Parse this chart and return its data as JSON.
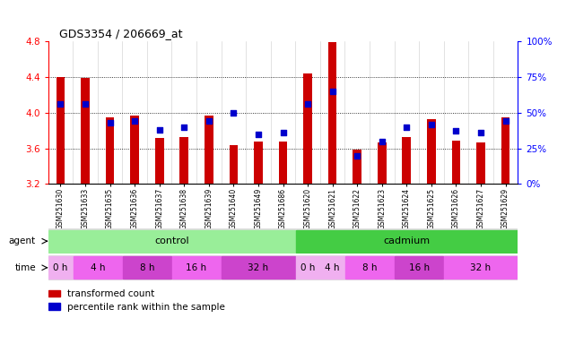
{
  "title": "GDS3354 / 206669_at",
  "samples": [
    "GSM251630",
    "GSM251633",
    "GSM251635",
    "GSM251636",
    "GSM251637",
    "GSM251638",
    "GSM251639",
    "GSM251640",
    "GSM251649",
    "GSM251686",
    "GSM251620",
    "GSM251621",
    "GSM251622",
    "GSM251623",
    "GSM251624",
    "GSM251625",
    "GSM251626",
    "GSM251627",
    "GSM251629"
  ],
  "bar_values": [
    4.4,
    4.39,
    3.95,
    3.97,
    3.72,
    3.73,
    3.97,
    3.64,
    3.68,
    3.68,
    4.44,
    4.79,
    3.59,
    3.67,
    3.73,
    3.93,
    3.69,
    3.67,
    3.95
  ],
  "percentile_values": [
    56,
    56,
    43,
    44,
    38,
    40,
    44,
    50,
    35,
    36,
    56,
    65,
    20,
    30,
    40,
    42,
    37,
    36,
    44
  ],
  "y_min": 3.2,
  "y_max": 4.8,
  "y_ticks": [
    3.2,
    3.6,
    4.0,
    4.4,
    4.8
  ],
  "y_right_ticks": [
    0,
    25,
    50,
    75,
    100
  ],
  "bar_color": "#cc0000",
  "dot_color": "#0000cc",
  "grid_color": "#000000",
  "agent_groups": [
    {
      "label": "control",
      "start": 0,
      "end": 10,
      "color": "#99ee99"
    },
    {
      "label": "cadmium",
      "start": 10,
      "end": 19,
      "color": "#44cc44"
    }
  ],
  "time_groups": [
    {
      "label": "0 h",
      "start": 0,
      "end": 1,
      "color": "#f0b0f0"
    },
    {
      "label": "4 h",
      "start": 1,
      "end": 3,
      "color": "#ee66ee"
    },
    {
      "label": "8 h",
      "start": 3,
      "end": 5,
      "color": "#cc44cc"
    },
    {
      "label": "16 h",
      "start": 5,
      "end": 7,
      "color": "#ee66ee"
    },
    {
      "label": "32 h",
      "start": 7,
      "end": 10,
      "color": "#cc44cc"
    },
    {
      "label": "0 h",
      "start": 10,
      "end": 11,
      "color": "#f0b0f0"
    },
    {
      "label": "4 h",
      "start": 11,
      "end": 12,
      "color": "#f0b0f0"
    },
    {
      "label": "8 h",
      "start": 12,
      "end": 14,
      "color": "#ee66ee"
    },
    {
      "label": "16 h",
      "start": 14,
      "end": 16,
      "color": "#cc44cc"
    },
    {
      "label": "32 h",
      "start": 16,
      "end": 19,
      "color": "#ee66ee"
    }
  ],
  "bg_color": "#ffffff",
  "bar_bottom": 3.2,
  "legend_items": [
    {
      "color": "#cc0000",
      "label": "transformed count"
    },
    {
      "color": "#0000cc",
      "label": "percentile rank within the sample"
    }
  ]
}
